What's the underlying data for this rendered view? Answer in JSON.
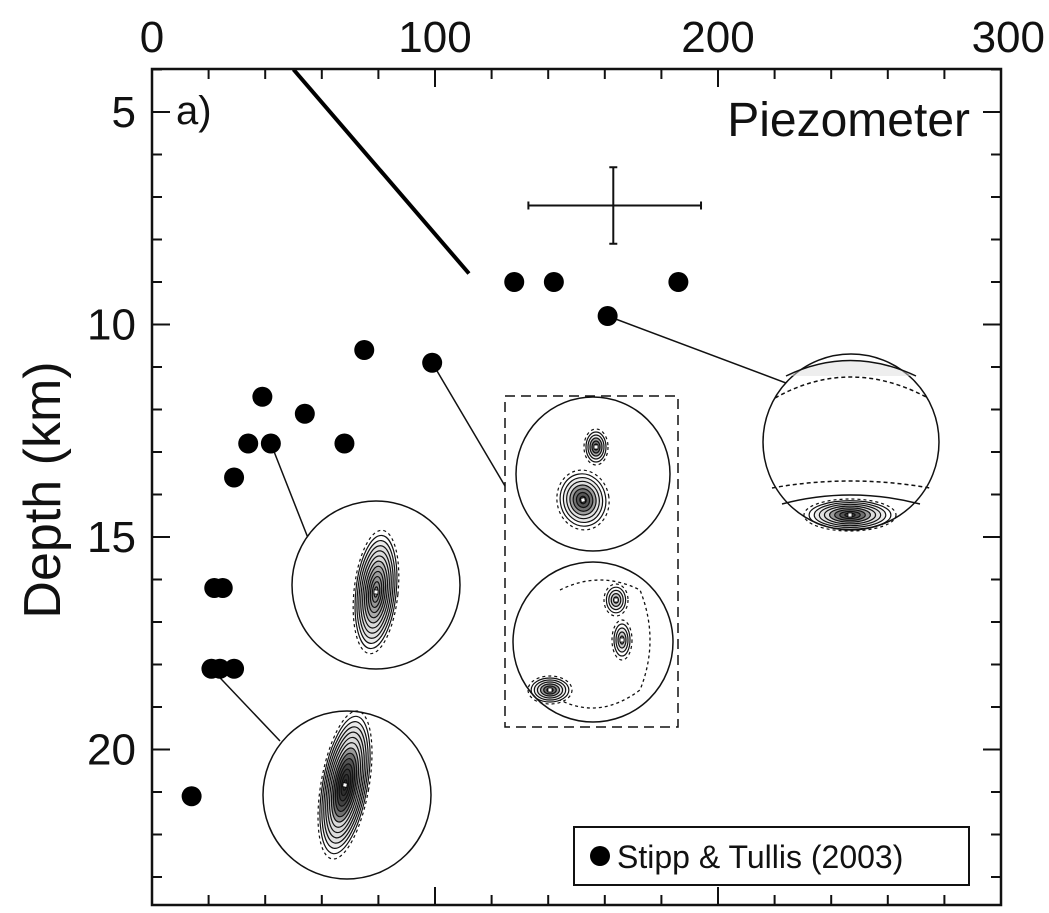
{
  "chart_data": {
    "type": "scatter",
    "panel_label": "a)",
    "title": "Piezometer",
    "xlabel": "",
    "ylabel": "Depth (km)",
    "xlim": [
      0,
      300
    ],
    "ylim": [
      24,
      4
    ],
    "x_ticks": [
      0,
      100,
      200,
      300
    ],
    "y_ticks": [
      5,
      10,
      15,
      20
    ],
    "x_axis_position": "top",
    "y_axis_inverted": true,
    "legend": {
      "placement": "bottom-right",
      "entries": [
        "Stipp & Tullis (2003)"
      ]
    },
    "series": [
      {
        "name": "Stipp & Tullis (2003)",
        "marker": "filled-circle",
        "color": "#000000",
        "points": [
          {
            "x": 128,
            "y": 9.0
          },
          {
            "x": 142,
            "y": 9.0
          },
          {
            "x": 186,
            "y": 9.0
          },
          {
            "x": 161,
            "y": 9.8
          },
          {
            "x": 75,
            "y": 10.6
          },
          {
            "x": 99,
            "y": 10.9
          },
          {
            "x": 39,
            "y": 11.7
          },
          {
            "x": 54,
            "y": 12.1
          },
          {
            "x": 34,
            "y": 12.8
          },
          {
            "x": 42,
            "y": 12.8
          },
          {
            "x": 68,
            "y": 12.8
          },
          {
            "x": 29,
            "y": 13.6
          },
          {
            "x": 22,
            "y": 16.2
          },
          {
            "x": 25,
            "y": 16.2
          },
          {
            "x": 21,
            "y": 18.1
          },
          {
            "x": 24,
            "y": 18.1
          },
          {
            "x": 29,
            "y": 18.1
          },
          {
            "x": 14,
            "y": 21.1
          }
        ]
      }
    ],
    "line": {
      "points": [
        {
          "x": 50,
          "y": 4.0
        },
        {
          "x": 112,
          "y": 8.8
        }
      ]
    },
    "error_bar": {
      "x": 163,
      "y": 7.2,
      "x_range": [
        133,
        194
      ],
      "y_range": [
        6.3,
        8.1
      ]
    }
  }
}
